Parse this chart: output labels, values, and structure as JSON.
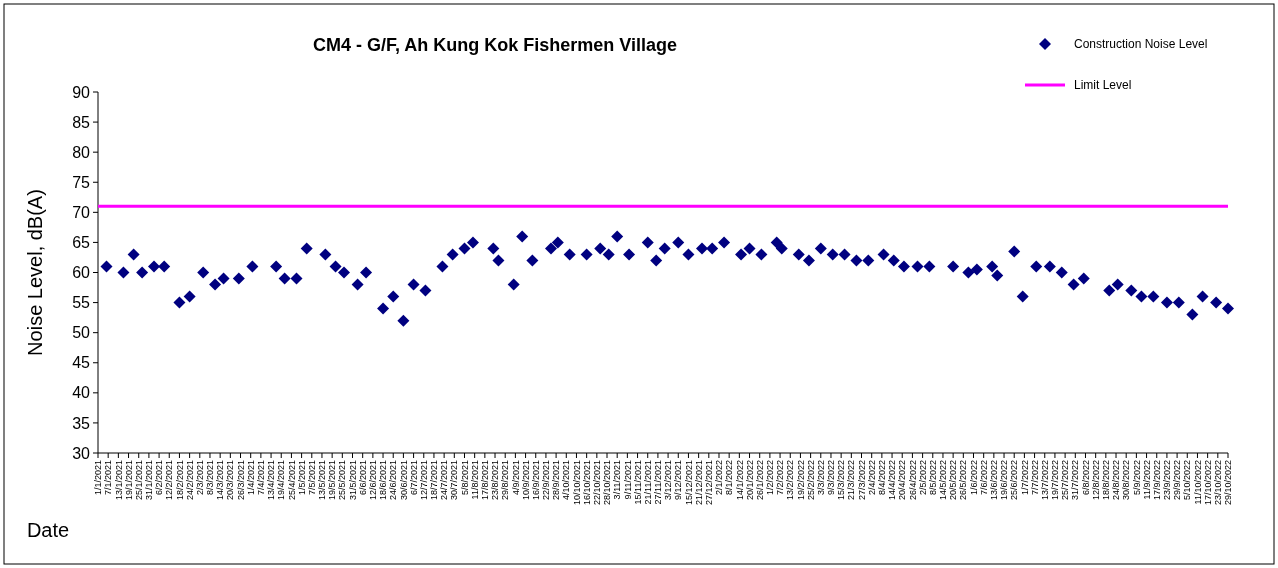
{
  "chart_data": {
    "type": "scatter",
    "title": "CM4 - G/F, Ah Kung Kok Fishermen Village",
    "xlabel": "Date",
    "ylabel": "Noise Level, dB(A)",
    "ylim": [
      30,
      90
    ],
    "yticks": [
      30,
      35,
      40,
      45,
      50,
      55,
      60,
      65,
      70,
      75,
      80,
      85,
      90
    ],
    "xlim": [
      "2021-01-01",
      "2022-10-29"
    ],
    "grid": false,
    "legend": "top right",
    "xticks": [
      {
        "value": "2021-01-01",
        "label": "1/1/2021"
      },
      {
        "value": "2021-01-07",
        "label": "7/1/2021"
      },
      {
        "value": "2021-01-13",
        "label": "13/1/2021"
      },
      {
        "value": "2021-01-19",
        "label": "19/1/2021"
      },
      {
        "value": "2021-01-25",
        "label": "25/1/2021"
      },
      {
        "value": "2021-01-31",
        "label": "31/1/2021"
      },
      {
        "value": "2021-02-06",
        "label": "6/2/2021"
      },
      {
        "value": "2021-02-12",
        "label": "12/2/2021"
      },
      {
        "value": "2021-02-18",
        "label": "18/2/2021"
      },
      {
        "value": "2021-02-24",
        "label": "24/2/2021"
      },
      {
        "value": "2021-03-02",
        "label": "2/3/2021"
      },
      {
        "value": "2021-03-08",
        "label": "8/3/2021"
      },
      {
        "value": "2021-03-14",
        "label": "14/3/2021"
      },
      {
        "value": "2021-03-20",
        "label": "20/3/2021"
      },
      {
        "value": "2021-03-26",
        "label": "26/3/2021"
      },
      {
        "value": "2021-04-01",
        "label": "1/4/2021"
      },
      {
        "value": "2021-04-07",
        "label": "7/4/2021"
      },
      {
        "value": "2021-04-13",
        "label": "13/4/2021"
      },
      {
        "value": "2021-04-19",
        "label": "19/4/2021"
      },
      {
        "value": "2021-04-25",
        "label": "25/4/2021"
      },
      {
        "value": "2021-05-01",
        "label": "1/5/2021"
      },
      {
        "value": "2021-05-07",
        "label": "7/5/2021"
      },
      {
        "value": "2021-05-13",
        "label": "13/5/2021"
      },
      {
        "value": "2021-05-19",
        "label": "19/5/2021"
      },
      {
        "value": "2021-05-25",
        "label": "25/5/2021"
      },
      {
        "value": "2021-05-31",
        "label": "31/5/2021"
      },
      {
        "value": "2021-06-06",
        "label": "6/6/2021"
      },
      {
        "value": "2021-06-12",
        "label": "12/6/2021"
      },
      {
        "value": "2021-06-18",
        "label": "18/6/2021"
      },
      {
        "value": "2021-06-24",
        "label": "24/6/2021"
      },
      {
        "value": "2021-06-30",
        "label": "30/6/2021"
      },
      {
        "value": "2021-07-06",
        "label": "6/7/2021"
      },
      {
        "value": "2021-07-12",
        "label": "12/7/2021"
      },
      {
        "value": "2021-07-18",
        "label": "18/7/2021"
      },
      {
        "value": "2021-07-24",
        "label": "24/7/2021"
      },
      {
        "value": "2021-07-30",
        "label": "30/7/2021"
      },
      {
        "value": "2021-08-05",
        "label": "5/8/2021"
      },
      {
        "value": "2021-08-11",
        "label": "11/8/2021"
      },
      {
        "value": "2021-08-17",
        "label": "17/8/2021"
      },
      {
        "value": "2021-08-23",
        "label": "23/8/2021"
      },
      {
        "value": "2021-08-29",
        "label": "29/8/2021"
      },
      {
        "value": "2021-09-04",
        "label": "4/9/2021"
      },
      {
        "value": "2021-09-10",
        "label": "10/9/2021"
      },
      {
        "value": "2021-09-16",
        "label": "16/9/2021"
      },
      {
        "value": "2021-09-22",
        "label": "22/9/2021"
      },
      {
        "value": "2021-09-28",
        "label": "28/9/2021"
      },
      {
        "value": "2021-10-04",
        "label": "4/10/2021"
      },
      {
        "value": "2021-10-10",
        "label": "10/10/2021"
      },
      {
        "value": "2021-10-16",
        "label": "16/10/2021"
      },
      {
        "value": "2021-10-22",
        "label": "22/10/2021"
      },
      {
        "value": "2021-10-28",
        "label": "28/10/2021"
      },
      {
        "value": "2021-11-03",
        "label": "3/11/2021"
      },
      {
        "value": "2021-11-09",
        "label": "9/11/2021"
      },
      {
        "value": "2021-11-15",
        "label": "15/11/2021"
      },
      {
        "value": "2021-11-21",
        "label": "21/11/2021"
      },
      {
        "value": "2021-11-27",
        "label": "27/11/2021"
      },
      {
        "value": "2021-12-03",
        "label": "3/12/2021"
      },
      {
        "value": "2021-12-09",
        "label": "9/12/2021"
      },
      {
        "value": "2021-12-15",
        "label": "15/12/2021"
      },
      {
        "value": "2021-12-21",
        "label": "21/12/2021"
      },
      {
        "value": "2021-12-27",
        "label": "27/12/2021"
      },
      {
        "value": "2022-01-02",
        "label": "2/1/2022"
      },
      {
        "value": "2022-01-08",
        "label": "8/1/2022"
      },
      {
        "value": "2022-01-14",
        "label": "14/1/2022"
      },
      {
        "value": "2022-01-20",
        "label": "20/1/2022"
      },
      {
        "value": "2022-01-26",
        "label": "26/1/2022"
      },
      {
        "value": "2022-02-01",
        "label": "1/2/2022"
      },
      {
        "value": "2022-02-07",
        "label": "7/2/2022"
      },
      {
        "value": "2022-02-13",
        "label": "13/2/2022"
      },
      {
        "value": "2022-02-19",
        "label": "19/2/2022"
      },
      {
        "value": "2022-02-25",
        "label": "25/2/2022"
      },
      {
        "value": "2022-03-03",
        "label": "3/3/2022"
      },
      {
        "value": "2022-03-09",
        "label": "9/3/2022"
      },
      {
        "value": "2022-03-15",
        "label": "15/3/2022"
      },
      {
        "value": "2022-03-21",
        "label": "21/3/2022"
      },
      {
        "value": "2022-03-27",
        "label": "27/3/2022"
      },
      {
        "value": "2022-04-02",
        "label": "2/4/2022"
      },
      {
        "value": "2022-04-08",
        "label": "8/4/2022"
      },
      {
        "value": "2022-04-14",
        "label": "14/4/2022"
      },
      {
        "value": "2022-04-20",
        "label": "20/4/2022"
      },
      {
        "value": "2022-04-26",
        "label": "26/4/2022"
      },
      {
        "value": "2022-05-02",
        "label": "2/5/2022"
      },
      {
        "value": "2022-05-08",
        "label": "8/5/2022"
      },
      {
        "value": "2022-05-14",
        "label": "14/5/2022"
      },
      {
        "value": "2022-05-20",
        "label": "20/5/2022"
      },
      {
        "value": "2022-05-26",
        "label": "26/5/2022"
      },
      {
        "value": "2022-06-01",
        "label": "1/6/2022"
      },
      {
        "value": "2022-06-07",
        "label": "7/6/2022"
      },
      {
        "value": "2022-06-13",
        "label": "13/6/2022"
      },
      {
        "value": "2022-06-19",
        "label": "19/6/2022"
      },
      {
        "value": "2022-06-25",
        "label": "25/6/2022"
      },
      {
        "value": "2022-07-01",
        "label": "1/7/2022"
      },
      {
        "value": "2022-07-07",
        "label": "7/7/2022"
      },
      {
        "value": "2022-07-13",
        "label": "13/7/2022"
      },
      {
        "value": "2022-07-19",
        "label": "19/7/2022"
      },
      {
        "value": "2022-07-25",
        "label": "25/7/2022"
      },
      {
        "value": "2022-07-31",
        "label": "31/7/2022"
      },
      {
        "value": "2022-08-06",
        "label": "6/8/2022"
      },
      {
        "value": "2022-08-12",
        "label": "12/8/2022"
      },
      {
        "value": "2022-08-18",
        "label": "18/8/2022"
      },
      {
        "value": "2022-08-24",
        "label": "24/8/2022"
      },
      {
        "value": "2022-08-30",
        "label": "30/8/2022"
      },
      {
        "value": "2022-09-05",
        "label": "5/9/2022"
      },
      {
        "value": "2022-09-11",
        "label": "11/9/2022"
      },
      {
        "value": "2022-09-17",
        "label": "17/9/2022"
      },
      {
        "value": "2022-09-23",
        "label": "23/9/2022"
      },
      {
        "value": "2022-09-29",
        "label": "29/9/2022"
      },
      {
        "value": "2022-10-05",
        "label": "5/10/2022"
      },
      {
        "value": "2022-10-11",
        "label": "11/10/2022"
      },
      {
        "value": "2022-10-17",
        "label": "17/10/2022"
      },
      {
        "value": "2022-10-23",
        "label": "23/10/2022"
      },
      {
        "value": "2022-10-29",
        "label": "29/10/2022"
      }
    ],
    "series": [
      {
        "name": "Construction Noise Level",
        "color": "#000080",
        "marker": "diamond",
        "x": [
          "2021-01-06",
          "2021-01-16",
          "2021-01-22",
          "2021-01-27",
          "2021-02-03",
          "2021-02-09",
          "2021-02-18",
          "2021-02-24",
          "2021-03-04",
          "2021-03-11",
          "2021-03-16",
          "2021-03-25",
          "2021-04-02",
          "2021-04-16",
          "2021-04-21",
          "2021-04-28",
          "2021-05-04",
          "2021-05-15",
          "2021-05-21",
          "2021-05-26",
          "2021-06-03",
          "2021-06-08",
          "2021-06-18",
          "2021-06-24",
          "2021-06-30",
          "2021-07-06",
          "2021-07-13",
          "2021-07-23",
          "2021-07-29",
          "2021-08-05",
          "2021-08-10",
          "2021-08-22",
          "2021-08-25",
          "2021-09-03",
          "2021-09-08",
          "2021-09-14",
          "2021-09-25",
          "2021-09-29",
          "2021-10-06",
          "2021-10-16",
          "2021-10-24",
          "2021-10-29",
          "2021-11-03",
          "2021-11-10",
          "2021-11-21",
          "2021-11-26",
          "2021-12-01",
          "2021-12-09",
          "2021-12-15",
          "2021-12-23",
          "2021-12-29",
          "2022-01-05",
          "2022-01-15",
          "2022-01-20",
          "2022-01-27",
          "2022-02-05",
          "2022-02-08",
          "2022-02-18",
          "2022-02-24",
          "2022-03-03",
          "2022-03-10",
          "2022-03-17",
          "2022-03-24",
          "2022-03-31",
          "2022-04-09",
          "2022-04-15",
          "2022-04-21",
          "2022-04-29",
          "2022-05-06",
          "2022-05-20",
          "2022-05-29",
          "2022-06-03",
          "2022-06-12",
          "2022-06-15",
          "2022-06-25",
          "2022-06-30",
          "2022-07-08",
          "2022-07-16",
          "2022-07-23",
          "2022-07-30",
          "2022-08-05",
          "2022-08-20",
          "2022-08-25",
          "2022-09-02",
          "2022-09-08",
          "2022-09-15",
          "2022-09-23",
          "2022-09-30",
          "2022-10-08",
          "2022-10-14",
          "2022-10-22",
          "2022-10-29"
        ],
        "values": [
          61,
          60,
          63,
          60,
          61,
          61,
          55,
          56,
          60,
          58,
          59,
          59,
          61,
          61,
          59,
          59,
          64,
          63,
          61,
          60,
          58,
          60,
          54,
          56,
          52,
          58,
          57,
          61,
          63,
          64,
          65,
          64,
          62,
          58,
          66,
          62,
          64,
          65,
          63,
          63,
          64,
          63,
          66,
          63,
          65,
          62,
          64,
          65,
          63,
          64,
          64,
          65,
          63,
          64,
          63,
          65,
          64,
          63,
          62,
          64,
          63,
          63,
          62,
          62,
          63,
          62,
          61,
          61,
          61,
          61,
          60,
          60.5,
          61,
          59.5,
          63.5,
          56,
          61,
          61,
          60,
          58,
          59,
          57,
          58,
          57,
          56,
          56,
          55,
          55,
          53,
          56,
          55,
          54
        ]
      },
      {
        "name": "Limit Level",
        "type": "line",
        "color": "#ff00ff",
        "x": [
          "2021-01-01",
          "2022-10-29"
        ],
        "values": [
          71,
          71
        ]
      }
    ]
  }
}
